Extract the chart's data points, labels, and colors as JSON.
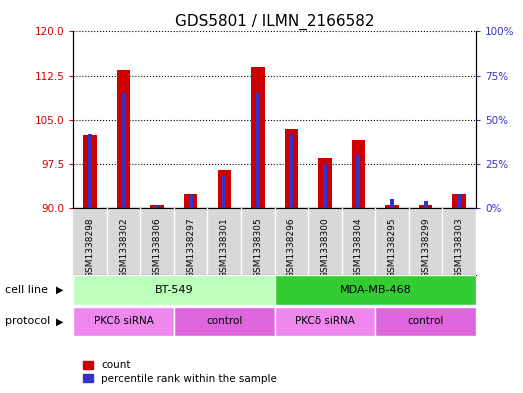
{
  "title": "GDS5801 / ILMN_2166582",
  "samples": [
    "GSM1338298",
    "GSM1338302",
    "GSM1338306",
    "GSM1338297",
    "GSM1338301",
    "GSM1338305",
    "GSM1338296",
    "GSM1338300",
    "GSM1338304",
    "GSM1338295",
    "GSM1338299",
    "GSM1338303"
  ],
  "count_values": [
    102.5,
    113.5,
    90.5,
    92.5,
    96.5,
    114.0,
    103.5,
    98.5,
    101.5,
    90.5,
    90.5,
    92.5
  ],
  "percentile_values": [
    42,
    65,
    2,
    8,
    18,
    65,
    42,
    25,
    30,
    5,
    4,
    8
  ],
  "ylim_left": [
    90,
    120
  ],
  "ylim_right": [
    0,
    100
  ],
  "yticks_left": [
    90,
    97.5,
    105,
    112.5,
    120
  ],
  "yticks_right": [
    0,
    25,
    50,
    75,
    100
  ],
  "bar_color_red": "#cc0000",
  "bar_color_blue": "#3333cc",
  "cell_line_groups": [
    {
      "label": "BT-549",
      "start": 0,
      "end": 5,
      "color": "#bbffbb"
    },
    {
      "label": "MDA-MB-468",
      "start": 6,
      "end": 11,
      "color": "#33cc33"
    }
  ],
  "protocol_groups": [
    {
      "label": "PKCδ siRNA",
      "start": 0,
      "end": 2,
      "color": "#ee88ee"
    },
    {
      "label": "control",
      "start": 3,
      "end": 5,
      "color": "#dd66dd"
    },
    {
      "label": "PKCδ siRNA",
      "start": 6,
      "end": 8,
      "color": "#ee88ee"
    },
    {
      "label": "control",
      "start": 9,
      "end": 11,
      "color": "#dd66dd"
    }
  ],
  "cell_line_label": "cell line",
  "protocol_label": "protocol",
  "legend_count": "count",
  "legend_percentile": "percentile rank within the sample",
  "background_color": "#ffffff",
  "plot_bg_color": "#ffffff",
  "xticklabel_bg": "#d8d8d8",
  "title_fontsize": 11,
  "tick_fontsize": 7,
  "red_bar_width": 0.4,
  "blue_bar_width": 0.12
}
